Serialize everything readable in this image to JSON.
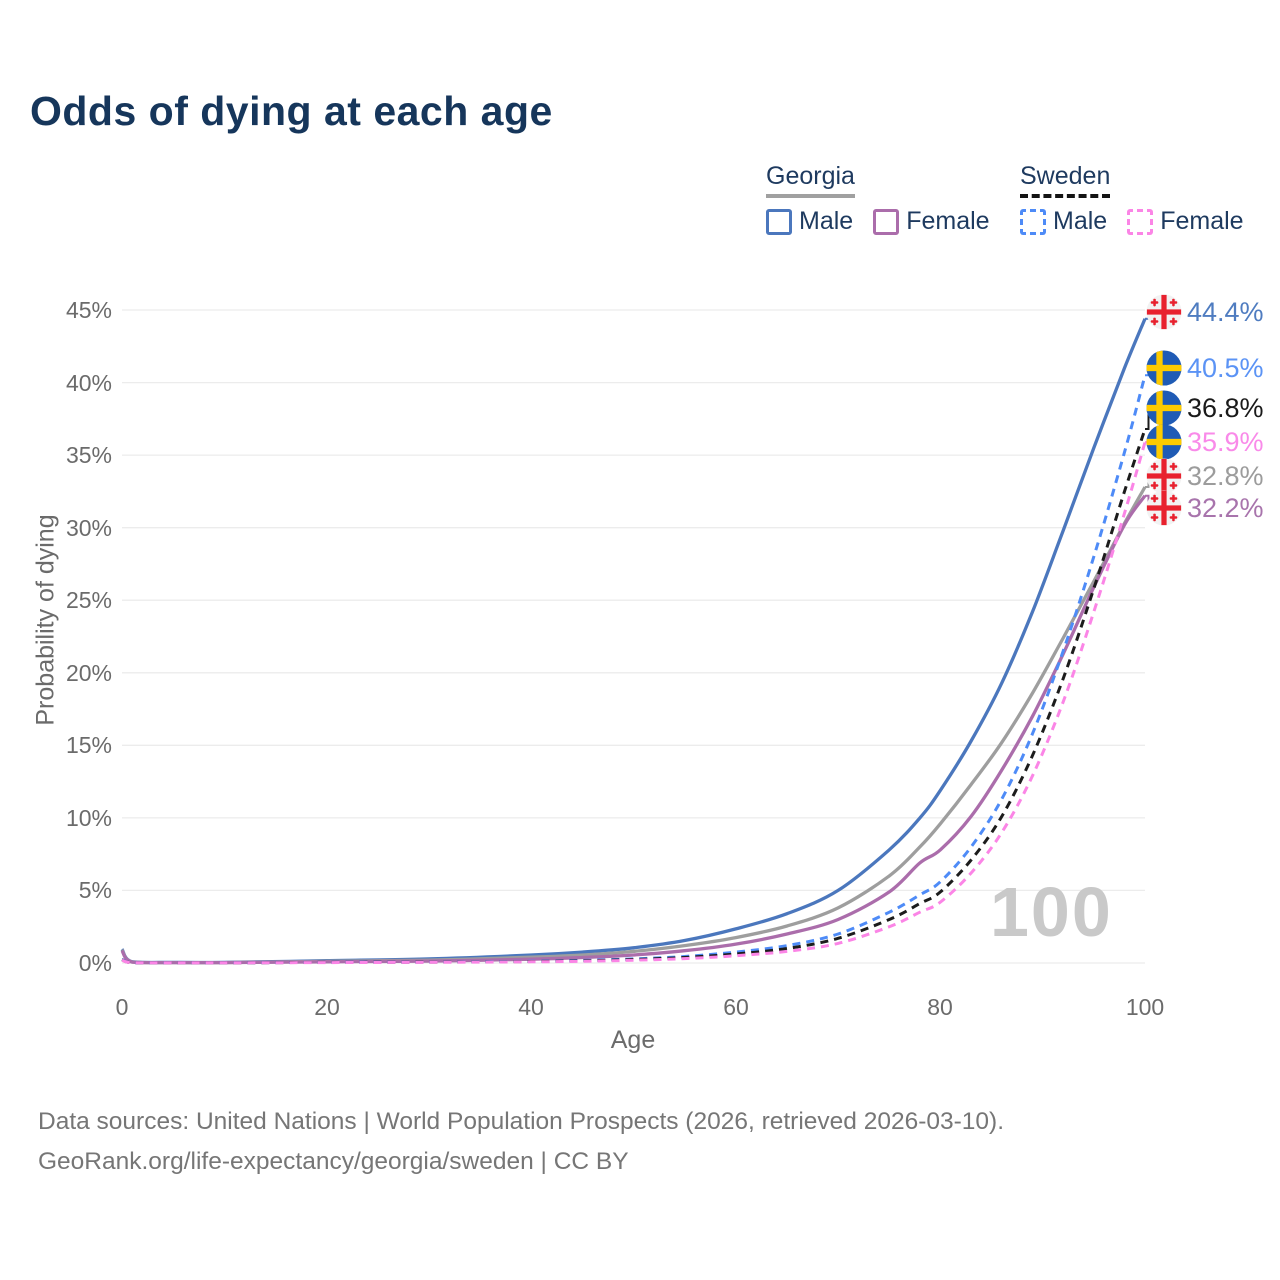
{
  "title": "Odds of dying at each age",
  "legend": {
    "georgia": {
      "title": "Georgia",
      "male_label": "Male",
      "female_label": "Female"
    },
    "sweden": {
      "title": "Sweden",
      "male_label": "Male",
      "female_label": "Female"
    }
  },
  "watermark": "100",
  "footer": {
    "line1": "Data sources: United Nations | World Population Prospects (2026, retrieved 2026-03-10).",
    "line2": "GeoRank.org/life-expectancy/georgia/sweden | CC BY"
  },
  "colors": {
    "title_text": "#16365b",
    "legend_text": "#1e3a5f",
    "axis_text": "#6b6b6b",
    "grid": "#ececec",
    "watermark": "#c9c9c9",
    "footer_text": "#767676",
    "georgia_male": "#4b77bd",
    "georgia_all": "#9e9e9e",
    "georgia_female": "#ab6dab",
    "sweden_male": "#4e8bf7",
    "sweden_all": "#1c1c1c",
    "sweden_female": "#fb85e6",
    "georgia_underline": "#a0a0a0",
    "sweden_underline": "#141414",
    "georgia_flag_red": "#e8212e",
    "georgia_flag_bg": "#f2f2f2",
    "sweden_flag_blue": "#1f5bb5",
    "sweden_flag_yellow": "#fecb00"
  },
  "axes": {
    "x": {
      "label": "Age",
      "ticks": [
        {
          "value": 0,
          "label": "0"
        },
        {
          "value": 20,
          "label": "20"
        },
        {
          "value": 40,
          "label": "40"
        },
        {
          "value": 60,
          "label": "60"
        },
        {
          "value": 80,
          "label": "80"
        },
        {
          "value": 100,
          "label": "100"
        }
      ]
    },
    "y": {
      "label": "Probability of dying",
      "ticks": [
        {
          "value": 0,
          "label": "0%"
        },
        {
          "value": 5,
          "label": "5%"
        },
        {
          "value": 10,
          "label": "10%"
        },
        {
          "value": 15,
          "label": "15%"
        },
        {
          "value": 20,
          "label": "20%"
        },
        {
          "value": 25,
          "label": "25%"
        },
        {
          "value": 30,
          "label": "30%"
        },
        {
          "value": 35,
          "label": "35%"
        },
        {
          "value": 40,
          "label": "40%"
        },
        {
          "value": 45,
          "label": "45%"
        }
      ]
    }
  },
  "chart_data": {
    "type": "line",
    "title": "Odds of dying at each age",
    "xlabel": "Age",
    "ylabel": "Probability of dying",
    "xlim": [
      0,
      100
    ],
    "ylim": [
      0,
      45
    ],
    "unit": "%",
    "grid": "horizontal",
    "legend_position": "top-right",
    "hovered_age": "100",
    "x_ages": [
      0,
      1,
      5,
      10,
      20,
      30,
      40,
      45,
      50,
      55,
      60,
      65,
      70,
      75,
      78,
      80,
      83,
      86,
      89,
      92,
      95,
      98,
      100
    ],
    "series": [
      {
        "id": "georgia-male",
        "name": "Georgia Male",
        "country": "Georgia",
        "sex": "male",
        "line_style": "solid",
        "color_key": "georgia_male",
        "flag_icon": "georgia-flag-icon",
        "end_value": 44.4,
        "end_label": "44.4%",
        "end_label_color": "#4f7cc0",
        "values": [
          0.95,
          0.08,
          0.04,
          0.04,
          0.16,
          0.28,
          0.55,
          0.75,
          1.05,
          1.55,
          2.35,
          3.4,
          5.0,
          7.8,
          10.0,
          11.9,
          15.3,
          19.3,
          24.2,
          29.8,
          35.5,
          41.0,
          44.4
        ]
      },
      {
        "id": "georgia-all",
        "name": "Georgia",
        "country": "Georgia",
        "sex": "both",
        "line_style": "solid",
        "color_key": "georgia_all",
        "flag_icon": "georgia-flag-icon",
        "end_value": 32.8,
        "end_label": "32.8%",
        "end_label_color": "#9c9c9c",
        "values": [
          0.9,
          0.07,
          0.03,
          0.03,
          0.12,
          0.2,
          0.4,
          0.55,
          0.8,
          1.2,
          1.75,
          2.55,
          3.8,
          6.0,
          8.0,
          9.6,
          12.3,
          15.2,
          18.6,
          22.4,
          26.3,
          30.3,
          32.8
        ]
      },
      {
        "id": "georgia-female",
        "name": "Georgia Female",
        "country": "Georgia",
        "sex": "female",
        "line_style": "solid",
        "color_key": "georgia_female",
        "flag_icon": "georgia-flag-icon",
        "end_value": 32.2,
        "end_label": "32.2%",
        "end_label_color": "#a874ac",
        "values": [
          0.85,
          0.06,
          0.03,
          0.03,
          0.08,
          0.13,
          0.26,
          0.38,
          0.55,
          0.85,
          1.3,
          2.0,
          3.0,
          4.9,
          6.9,
          7.8,
          10.1,
          13.3,
          17.0,
          21.3,
          25.9,
          30.2,
          32.2
        ]
      },
      {
        "id": "sweden-male",
        "name": "Sweden Male",
        "country": "Sweden",
        "sex": "male",
        "line_style": "dashed",
        "color_key": "sweden_male",
        "flag_icon": "sweden-flag-icon",
        "end_value": 40.5,
        "end_label": "40.5%",
        "end_label_color": "#5b93f5",
        "values": [
          0.25,
          0.02,
          0.01,
          0.01,
          0.05,
          0.07,
          0.12,
          0.18,
          0.28,
          0.45,
          0.75,
          1.2,
          2.0,
          3.5,
          4.7,
          5.6,
          8.0,
          11.3,
          15.8,
          21.5,
          28.0,
          35.2,
          40.5
        ]
      },
      {
        "id": "sweden-all",
        "name": "Sweden",
        "country": "Sweden",
        "sex": "both",
        "line_style": "dashed",
        "color_key": "sweden_all",
        "flag_icon": "sweden-flag-icon",
        "end_value": 36.8,
        "end_label": "36.8%",
        "end_label_color": "#1a1a1a",
        "values": [
          0.22,
          0.02,
          0.01,
          0.01,
          0.04,
          0.06,
          0.1,
          0.15,
          0.24,
          0.38,
          0.62,
          1.0,
          1.7,
          3.0,
          4.1,
          4.9,
          7.1,
          10.1,
          14.3,
          19.6,
          25.8,
          32.5,
          36.8
        ]
      },
      {
        "id": "sweden-female",
        "name": "Sweden Female",
        "country": "Sweden",
        "sex": "female",
        "line_style": "dashed",
        "color_key": "sweden_female",
        "flag_icon": "sweden-flag-icon",
        "end_value": 35.9,
        "end_label": "35.9%",
        "end_label_color": "#f98ae9",
        "values": [
          0.2,
          0.02,
          0.01,
          0.01,
          0.03,
          0.05,
          0.08,
          0.12,
          0.19,
          0.3,
          0.5,
          0.8,
          1.35,
          2.5,
          3.5,
          4.2,
          6.2,
          9.0,
          12.9,
          18.0,
          24.2,
          31.0,
          35.9
        ]
      }
    ]
  }
}
